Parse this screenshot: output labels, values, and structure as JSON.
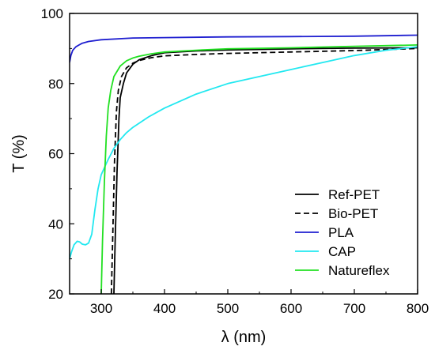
{
  "chart_data": {
    "type": "line",
    "xlabel": "λ (nm)",
    "ylabel": "T (%)",
    "xlim": [
      250,
      800
    ],
    "ylim": [
      20,
      100
    ],
    "xticks": [
      300,
      400,
      500,
      600,
      700,
      800
    ],
    "yticks": [
      20,
      40,
      60,
      80,
      100
    ],
    "grid": false,
    "legend_position": "bottom-right",
    "series": [
      {
        "name": "Ref-PET",
        "color": "#000000",
        "dash": "solid",
        "x": [
          320,
          322,
          325,
          328,
          330,
          335,
          340,
          350,
          360,
          380,
          400,
          450,
          500,
          600,
          700,
          800
        ],
        "y": [
          20,
          35,
          55,
          70,
          76,
          80,
          83,
          85.5,
          86.8,
          88,
          88.8,
          89.3,
          89.6,
          89.9,
          90.1,
          90.2
        ]
      },
      {
        "name": "Bio-PET",
        "color": "#000000",
        "dash": "dashed",
        "x": [
          316,
          318,
          321,
          324,
          327,
          332,
          340,
          350,
          360,
          380,
          400,
          450,
          500,
          600,
          700,
          800
        ],
        "y": [
          20,
          35,
          58,
          72,
          78,
          82,
          84.5,
          85.8,
          86.6,
          87.4,
          87.9,
          88.3,
          88.6,
          89,
          89.4,
          90
        ]
      },
      {
        "name": "PLA",
        "color": "#1f1fd0",
        "dash": "solid",
        "x": [
          250,
          252,
          255,
          260,
          265,
          270,
          280,
          300,
          350,
          400,
          500,
          600,
          700,
          800
        ],
        "y": [
          86,
          88,
          89.5,
          90.5,
          91,
          91.5,
          92,
          92.5,
          93,
          93.1,
          93.3,
          93.4,
          93.5,
          93.8
        ]
      },
      {
        "name": "CAP",
        "color": "#22e8f0",
        "dash": "solid",
        "x": [
          250,
          253,
          257,
          262,
          266,
          270,
          275,
          280,
          285,
          290,
          295,
          300,
          310,
          320,
          330,
          340,
          350,
          375,
          400,
          450,
          500,
          550,
          600,
          650,
          700,
          750,
          800
        ],
        "y": [
          30,
          32,
          34,
          35,
          34.8,
          34.2,
          34,
          34.5,
          37,
          44,
          50,
          54,
          58,
          61.5,
          64,
          66,
          67.5,
          70.5,
          73,
          77,
          80,
          82,
          84,
          86,
          88,
          89.5,
          90.5
        ]
      },
      {
        "name": "Natureflex",
        "color": "#22e022",
        "dash": "solid",
        "x": [
          300,
          302,
          305,
          308,
          311,
          315,
          320,
          330,
          340,
          350,
          360,
          380,
          400,
          450,
          500,
          600,
          700,
          800
        ],
        "y": [
          20,
          35,
          52,
          65,
          73,
          78,
          82,
          85,
          86.5,
          87.3,
          87.8,
          88.5,
          89,
          89.5,
          89.9,
          90.2,
          90.6,
          91
        ]
      }
    ]
  }
}
